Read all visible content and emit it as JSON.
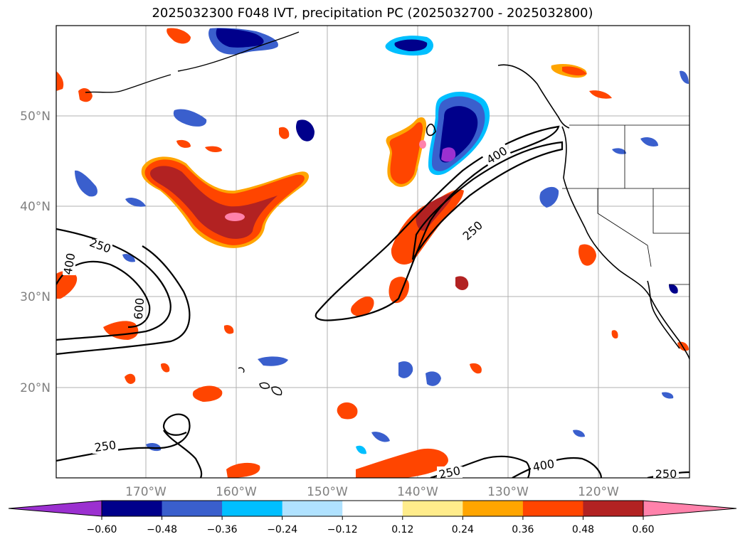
{
  "title": "2025032300 F048 IVT, precipitation PC (2025032700 - 2025032800)",
  "map": {
    "lat_labels": [
      "50°N",
      "40°N",
      "30°N",
      "20°N"
    ],
    "lon_labels": [
      "170°W",
      "160°W",
      "150°W",
      "140°W",
      "130°W",
      "120°W"
    ],
    "ivt_contour_labels": [
      {
        "text": "250"
      },
      {
        "text": "400"
      },
      {
        "text": "600"
      },
      {
        "text": "400"
      },
      {
        "text": "250"
      },
      {
        "text": "250"
      },
      {
        "text": "250"
      },
      {
        "text": "400"
      },
      {
        "text": "250"
      }
    ]
  },
  "colorbar": {
    "colors": [
      "#9b30d0",
      "#00008b",
      "#3a5fcd",
      "#00bfff",
      "#b0e2ff",
      "#ffffff",
      "#ffec8b",
      "#ffa500",
      "#ff4500",
      "#b22222",
      "#ff82ab"
    ],
    "ticks": [
      "−0.60",
      "−0.48",
      "−0.36",
      "−0.24",
      "−0.12",
      "0.12",
      "0.24",
      "0.36",
      "0.48",
      "0.60"
    ]
  }
}
